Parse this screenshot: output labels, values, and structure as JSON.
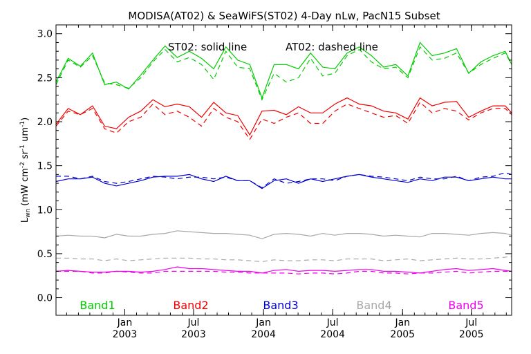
{
  "chart_data": {
    "type": "line",
    "title": "MODISA(AT02) & SeaWiFS(ST02) 4-Day nLw, PacN15 Subset",
    "annotation_solid": "ST02: solid line",
    "annotation_dashed": "AT02: dashed line",
    "ylabel": "Lwn (mW cm^-2 sr^-1 um^-1)",
    "xlabel": "",
    "ylim": [
      -0.2,
      3.1
    ],
    "yticks": [
      "0.0",
      "0.5",
      "1.0",
      "1.5",
      "2.0",
      "2.5",
      "3.0"
    ],
    "xlim": [
      "2002-07-04",
      "2005-10-15"
    ],
    "xticks": [
      {
        "month": "Jan",
        "year": "2003",
        "date": "2003-01-01"
      },
      {
        "month": "Jul",
        "year": "2003",
        "date": "2003-07-01"
      },
      {
        "month": "Jan",
        "year": "2004",
        "date": "2004-01-01"
      },
      {
        "month": "Jul",
        "year": "2004",
        "date": "2004-07-01"
      },
      {
        "month": "Jan",
        "year": "2005",
        "date": "2005-01-01"
      },
      {
        "month": "Jul",
        "year": "2005",
        "date": "2005-07-01"
      }
    ],
    "grid": false,
    "legend_placement": "bottom",
    "x": [
      "2002-07-04",
      "2002-08-05",
      "2002-09-06",
      "2002-10-08",
      "2002-11-09",
      "2002-12-10",
      "2003-01-11",
      "2003-02-12",
      "2003-03-16",
      "2003-04-17",
      "2003-05-19",
      "2003-06-20",
      "2003-07-22",
      "2003-08-23",
      "2003-09-24",
      "2003-10-25",
      "2003-11-26",
      "2003-12-28",
      "2004-01-29",
      "2004-03-01",
      "2004-04-02",
      "2004-05-04",
      "2004-06-05",
      "2004-07-07",
      "2004-08-08",
      "2004-09-09",
      "2004-10-11",
      "2004-11-12",
      "2004-12-14",
      "2005-01-15",
      "2005-02-16",
      "2005-03-20",
      "2005-04-21",
      "2005-05-23",
      "2005-06-24",
      "2005-07-26",
      "2005-08-27",
      "2005-09-28",
      "2005-10-15"
    ],
    "series": [
      {
        "name": "Band1",
        "color": "#00cc00",
        "solid": [
          2.45,
          2.72,
          2.63,
          2.78,
          2.42,
          2.45,
          2.37,
          2.53,
          2.7,
          2.86,
          2.73,
          2.8,
          2.72,
          2.6,
          2.85,
          2.7,
          2.65,
          2.27,
          2.65,
          2.65,
          2.6,
          2.78,
          2.62,
          2.6,
          2.78,
          2.85,
          2.75,
          2.62,
          2.65,
          2.52,
          2.9,
          2.75,
          2.78,
          2.83,
          2.55,
          2.68,
          2.75,
          2.8,
          2.65
        ],
        "dashed": [
          2.42,
          2.7,
          2.62,
          2.75,
          2.44,
          2.42,
          2.38,
          2.5,
          2.68,
          2.82,
          2.68,
          2.73,
          2.65,
          2.48,
          2.8,
          2.62,
          2.6,
          2.25,
          2.55,
          2.45,
          2.5,
          2.72,
          2.52,
          2.55,
          2.75,
          2.82,
          2.68,
          2.6,
          2.62,
          2.5,
          2.85,
          2.7,
          2.72,
          2.78,
          2.55,
          2.65,
          2.72,
          2.78,
          2.65
        ]
      },
      {
        "name": "Band2",
        "color": "#ee0000",
        "solid": [
          1.97,
          2.15,
          2.08,
          2.18,
          1.95,
          1.92,
          2.05,
          2.12,
          2.25,
          2.17,
          2.2,
          2.17,
          2.05,
          2.22,
          2.1,
          2.07,
          1.85,
          2.12,
          2.13,
          2.08,
          2.17,
          2.1,
          2.1,
          2.2,
          2.27,
          2.2,
          2.18,
          2.12,
          2.1,
          2.03,
          2.27,
          2.18,
          2.22,
          2.23,
          2.05,
          2.12,
          2.18,
          2.18,
          2.1
        ],
        "dashed": [
          1.95,
          2.12,
          2.08,
          2.15,
          1.92,
          1.87,
          2.0,
          2.05,
          2.2,
          2.08,
          2.12,
          2.05,
          1.95,
          2.15,
          2.05,
          2.0,
          1.8,
          2.03,
          1.98,
          2.05,
          2.1,
          1.98,
          1.98,
          2.12,
          2.2,
          2.15,
          2.1,
          2.05,
          2.07,
          1.98,
          2.22,
          2.1,
          2.15,
          2.12,
          2.02,
          2.1,
          2.15,
          2.15,
          2.08
        ]
      },
      {
        "name": "Band3",
        "color": "#0000cc",
        "solid": [
          1.32,
          1.35,
          1.35,
          1.37,
          1.3,
          1.27,
          1.3,
          1.33,
          1.37,
          1.38,
          1.38,
          1.4,
          1.35,
          1.32,
          1.38,
          1.33,
          1.33,
          1.24,
          1.33,
          1.35,
          1.3,
          1.35,
          1.32,
          1.35,
          1.38,
          1.4,
          1.37,
          1.35,
          1.33,
          1.31,
          1.35,
          1.33,
          1.37,
          1.37,
          1.33,
          1.35,
          1.37,
          1.35,
          1.35
        ],
        "dashed": [
          1.38,
          1.38,
          1.35,
          1.38,
          1.32,
          1.3,
          1.32,
          1.35,
          1.38,
          1.37,
          1.35,
          1.37,
          1.37,
          1.35,
          1.37,
          1.33,
          1.33,
          1.25,
          1.35,
          1.3,
          1.32,
          1.35,
          1.35,
          1.33,
          1.38,
          1.4,
          1.38,
          1.37,
          1.35,
          1.33,
          1.37,
          1.35,
          1.35,
          1.38,
          1.33,
          1.37,
          1.38,
          1.42,
          1.4
        ]
      },
      {
        "name": "Band4",
        "color": "#a8a8a8",
        "solid": [
          0.7,
          0.71,
          0.7,
          0.7,
          0.68,
          0.72,
          0.7,
          0.7,
          0.72,
          0.73,
          0.76,
          0.75,
          0.74,
          0.73,
          0.73,
          0.72,
          0.71,
          0.67,
          0.72,
          0.73,
          0.72,
          0.7,
          0.73,
          0.71,
          0.73,
          0.73,
          0.72,
          0.7,
          0.71,
          0.7,
          0.69,
          0.73,
          0.73,
          0.72,
          0.71,
          0.73,
          0.74,
          0.73,
          0.71
        ],
        "dashed": [
          0.45,
          0.45,
          0.44,
          0.44,
          0.42,
          0.44,
          0.42,
          0.43,
          0.44,
          0.45,
          0.45,
          0.45,
          0.44,
          0.44,
          0.43,
          0.43,
          0.42,
          0.41,
          0.43,
          0.42,
          0.42,
          0.43,
          0.43,
          0.42,
          0.44,
          0.44,
          0.44,
          0.42,
          0.43,
          0.44,
          0.42,
          0.43,
          0.44,
          0.45,
          0.44,
          0.44,
          0.45,
          0.46,
          0.47
        ]
      },
      {
        "name": "Band5",
        "color": "#ee00ee",
        "solid": [
          0.3,
          0.31,
          0.3,
          0.29,
          0.29,
          0.3,
          0.3,
          0.29,
          0.3,
          0.32,
          0.35,
          0.33,
          0.33,
          0.32,
          0.31,
          0.3,
          0.3,
          0.28,
          0.31,
          0.32,
          0.3,
          0.31,
          0.31,
          0.3,
          0.31,
          0.32,
          0.32,
          0.3,
          0.3,
          0.29,
          0.28,
          0.3,
          0.32,
          0.33,
          0.31,
          0.32,
          0.33,
          0.31,
          0.3
        ],
        "dashed": [
          0.3,
          0.3,
          0.3,
          0.28,
          0.28,
          0.3,
          0.29,
          0.28,
          0.28,
          0.3,
          0.3,
          0.3,
          0.3,
          0.3,
          0.29,
          0.29,
          0.28,
          0.28,
          0.28,
          0.28,
          0.27,
          0.28,
          0.28,
          0.27,
          0.28,
          0.3,
          0.3,
          0.28,
          0.28,
          0.27,
          0.28,
          0.28,
          0.29,
          0.3,
          0.28,
          0.29,
          0.3,
          0.3,
          0.3
        ]
      }
    ]
  }
}
